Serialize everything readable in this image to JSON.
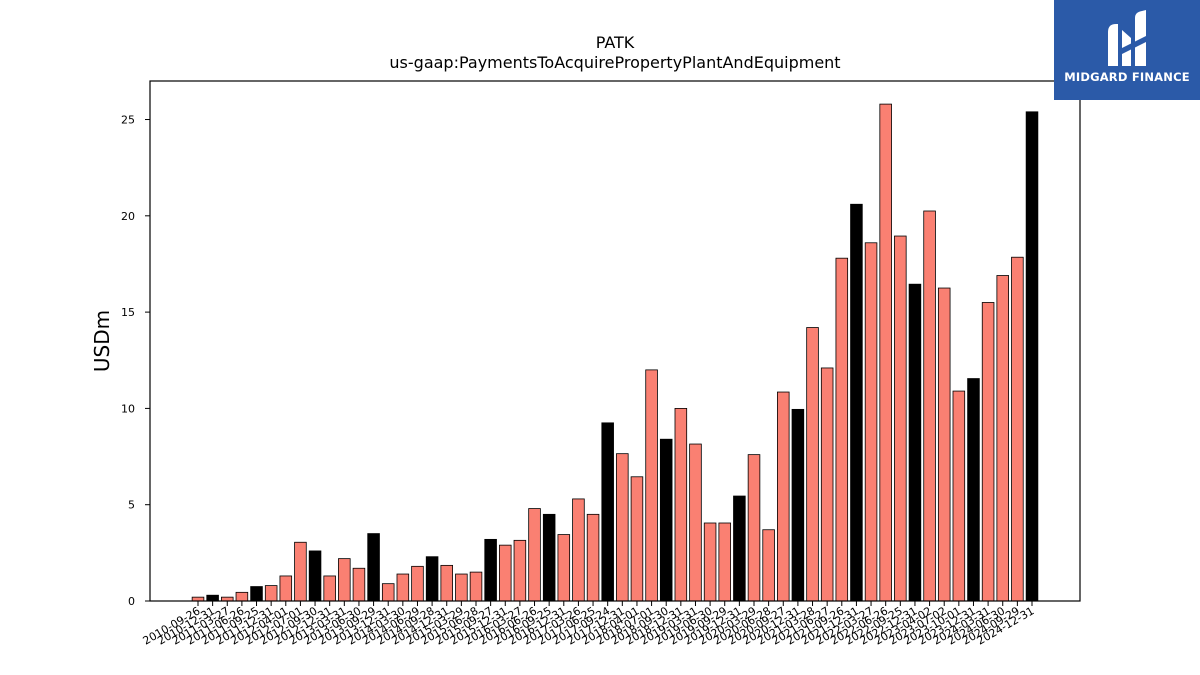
{
  "chart_data": {
    "type": "bar",
    "title": "PATK",
    "subtitle": "us-gaap:PaymentsToAcquirePropertyPlantAndEquipment",
    "ylabel": "USDm",
    "xlabel": "",
    "ylim": [
      0,
      27
    ],
    "yticks": [
      0,
      5,
      10,
      15,
      20,
      25
    ],
    "grid": false,
    "colors": {
      "quarter": "#fa8072",
      "annual": "#000000"
    },
    "categories": [
      "2010-09-26",
      "2010-12-31",
      "2011-03-27",
      "2011-06-26",
      "2011-09-25",
      "2011-12-31",
      "2012-04-01",
      "2012-07-01",
      "2012-09-30",
      "2012-12-31",
      "2013-03-31",
      "2013-06-30",
      "2013-09-29",
      "2013-12-31",
      "2014-03-30",
      "2014-06-29",
      "2014-09-28",
      "2014-12-31",
      "2015-03-29",
      "2015-06-28",
      "2015-09-27",
      "2015-12-31",
      "2016-03-27",
      "2016-06-26",
      "2016-09-25",
      "2016-12-31",
      "2017-03-26",
      "2017-06-25",
      "2017-09-24",
      "2017-12-31",
      "2018-04-01",
      "2018-07-01",
      "2018-09-30",
      "2018-12-31",
      "2019-03-31",
      "2019-06-30",
      "2019-09-29",
      "2019-12-31",
      "2020-03-29",
      "2020-06-28",
      "2020-09-27",
      "2020-12-31",
      "2021-03-28",
      "2021-06-27",
      "2021-09-26",
      "2021-12-31",
      "2022-03-27",
      "2022-06-26",
      "2022-09-25",
      "2022-12-31",
      "2023-04-02",
      "2023-07-02",
      "2023-10-01",
      "2023-12-31",
      "2024-03-31",
      "2024-06-30",
      "2024-09-29",
      "2024-12-31"
    ],
    "values": [
      0.2,
      0.3,
      0.2,
      0.45,
      0.75,
      0.8,
      1.3,
      3.05,
      2.6,
      1.3,
      2.2,
      1.7,
      3.5,
      0.9,
      1.4,
      1.8,
      2.3,
      1.85,
      1.4,
      1.5,
      3.2,
      2.9,
      3.15,
      4.8,
      4.5,
      3.45,
      5.3,
      4.5,
      9.25,
      7.65,
      6.45,
      12.0,
      8.4,
      10.0,
      8.15,
      4.05,
      4.05,
      5.45,
      7.6,
      3.7,
      10.85,
      9.95,
      14.2,
      12.1,
      17.8,
      20.6,
      18.6,
      25.8,
      18.95,
      16.45,
      20.25,
      16.25,
      10.9,
      11.55,
      15.5,
      16.9,
      17.85,
      25.4
    ],
    "kinds": [
      "q",
      "a",
      "q",
      "q",
      "a",
      "q",
      "q",
      "q",
      "a",
      "q",
      "q",
      "q",
      "a",
      "q",
      "q",
      "q",
      "a",
      "q",
      "q",
      "q",
      "a",
      "q",
      "q",
      "q",
      "a",
      "q",
      "q",
      "q",
      "a",
      "q",
      "q",
      "q",
      "a",
      "q",
      "q",
      "q",
      "q",
      "a",
      "q",
      "q",
      "q",
      "a",
      "q",
      "q",
      "q",
      "a",
      "q",
      "q",
      "q",
      "a",
      "q",
      "q",
      "q",
      "a",
      "q",
      "q",
      "q",
      "a"
    ]
  },
  "logo": {
    "text": "MIDGARD FINANCE"
  }
}
